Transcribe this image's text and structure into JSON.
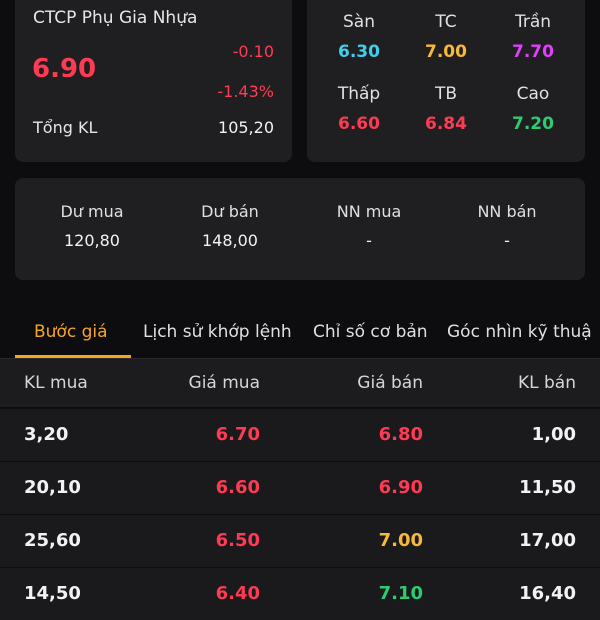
{
  "stock": {
    "company_name": "CTCP Phụ Gia Nhựa",
    "price": "6.90",
    "change": "-0.10",
    "change_pct": "-1.43%",
    "total_volume_label": "Tổng KL",
    "total_volume": "105,20"
  },
  "price_levels": [
    {
      "label": "Sàn",
      "value": "6.30",
      "color": "#3ed0ea"
    },
    {
      "label": "TC",
      "value": "7.00",
      "color": "#f6b93b"
    },
    {
      "label": "Trần",
      "value": "7.70",
      "color": "#e040fb"
    },
    {
      "label": "Thấp",
      "value": "6.60",
      "color": "#ff3b54"
    },
    {
      "label": "TB",
      "value": "6.84",
      "color": "#ff3b54"
    },
    {
      "label": "Cao",
      "value": "7.20",
      "color": "#2ecc71"
    }
  ],
  "order_summary": [
    {
      "label": "Dư mua",
      "value": "120,80"
    },
    {
      "label": "Dư bán",
      "value": "148,00"
    },
    {
      "label": "NN mua",
      "value": "-"
    },
    {
      "label": "NN bán",
      "value": "-"
    }
  ],
  "tabs": [
    {
      "label": "Bước giá",
      "active": true
    },
    {
      "label": "Lịch sử khớp lệnh",
      "active": false
    },
    {
      "label": "Chỉ số cơ bản",
      "active": false
    },
    {
      "label": "Góc nhìn kỹ thuậ",
      "active": false
    }
  ],
  "table": {
    "headers": [
      "KL mua",
      "Giá mua",
      "Giá bán",
      "KL bán"
    ],
    "rows": [
      {
        "buy_vol": "3,20",
        "buy_price": "6.70",
        "sell_price": "6.80",
        "sell_vol": "1,00",
        "buy_color": "#ff3b54",
        "sell_color": "#ff3b54"
      },
      {
        "buy_vol": "20,10",
        "buy_price": "6.60",
        "sell_price": "6.90",
        "sell_vol": "11,50",
        "buy_color": "#ff3b54",
        "sell_color": "#ff3b54"
      },
      {
        "buy_vol": "25,60",
        "buy_price": "6.50",
        "sell_price": "7.00",
        "sell_vol": "17,00",
        "buy_color": "#ff3b54",
        "sell_color": "#f6b93b"
      },
      {
        "buy_vol": "14,50",
        "buy_price": "6.40",
        "sell_price": "7.10",
        "sell_vol": "16,40",
        "buy_color": "#ff3b54",
        "sell_color": "#2ecc71"
      }
    ]
  }
}
